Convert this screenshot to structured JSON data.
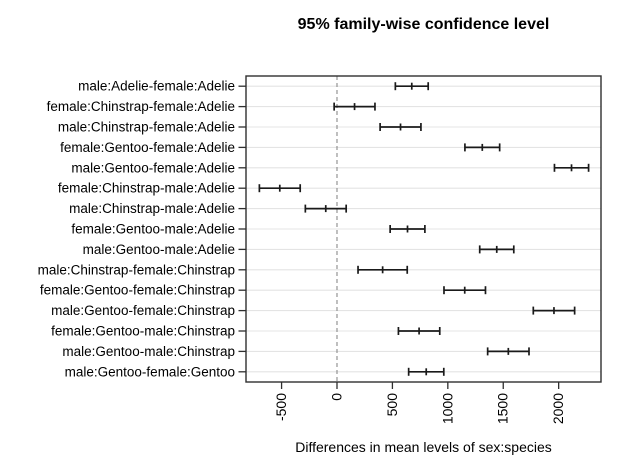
{
  "chart_data": {
    "type": "interval",
    "subtype": "tukey-hsd-family-wise-confidence-intervals",
    "title": "95% family-wise confidence level",
    "xlabel": "Differences in mean levels of sex:species",
    "ylabel": "",
    "xlim": [
      -821,
      2382
    ],
    "x_ticks": [
      -500,
      0,
      500,
      1000,
      1500,
      2000
    ],
    "x_tick_label_rotation_deg": -90,
    "reference_line_x": 0,
    "grid": "horizontal light lines, one per comparison row",
    "legend": "none",
    "rows": [
      {
        "label": "male:Adelie-female:Adelie",
        "diff": 674.7,
        "lwr": 526.5,
        "upr": 822.8
      },
      {
        "label": "female:Chinstrap-female:Adelie",
        "diff": 158.4,
        "lwr": -25.7,
        "upr": 342.6
      },
      {
        "label": "male:Chinstrap-female:Adelie",
        "diff": 573.2,
        "lwr": 389.0,
        "upr": 757.3
      },
      {
        "label": "female:Gentoo-female:Adelie",
        "diff": 1310.9,
        "lwr": 1154.2,
        "upr": 1467.7
      },
      {
        "label": "male:Gentoo-female:Adelie",
        "diff": 2116.0,
        "lwr": 1962.1,
        "upr": 2270.0
      },
      {
        "label": "female:Chinstrap-male:Adelie",
        "diff": -516.2,
        "lwr": -700.3,
        "upr": -332.0
      },
      {
        "label": "male:Chinstrap-male:Adelie",
        "diff": -101.4,
        "lwr": -285.6,
        "upr": 82.8
      },
      {
        "label": "female:Gentoo-male:Adelie",
        "diff": 636.2,
        "lwr": 479.5,
        "upr": 793.0
      },
      {
        "label": "male:Gentoo-male:Adelie",
        "diff": 1441.4,
        "lwr": 1287.7,
        "upr": 1595.1
      },
      {
        "label": "male:Chinstrap-female:Chinstrap",
        "diff": 411.8,
        "lwr": 189.8,
        "upr": 633.7
      },
      {
        "label": "female:Gentoo-female:Chinstrap",
        "diff": 1152.5,
        "lwr": 965.3,
        "upr": 1339.7
      },
      {
        "label": "male:Gentoo-female:Chinstrap",
        "diff": 1957.6,
        "lwr": 1771.1,
        "upr": 2144.1
      },
      {
        "label": "female:Gentoo-male:Chinstrap",
        "diff": 740.7,
        "lwr": 554.2,
        "upr": 927.2
      },
      {
        "label": "male:Gentoo-male:Chinstrap",
        "diff": 1545.8,
        "lwr": 1359.3,
        "upr": 1732.4
      },
      {
        "label": "male:Gentoo-female:Gentoo",
        "diff": 805.1,
        "lwr": 646.6,
        "upr": 963.6
      }
    ],
    "colors": {
      "background": "#ffffff",
      "interval": "#1a1a1a",
      "axis": "#2f2f2f",
      "gridline": "#e4e4e4",
      "reference_dashed": "#8a8a8a",
      "text": "#000000"
    }
  }
}
